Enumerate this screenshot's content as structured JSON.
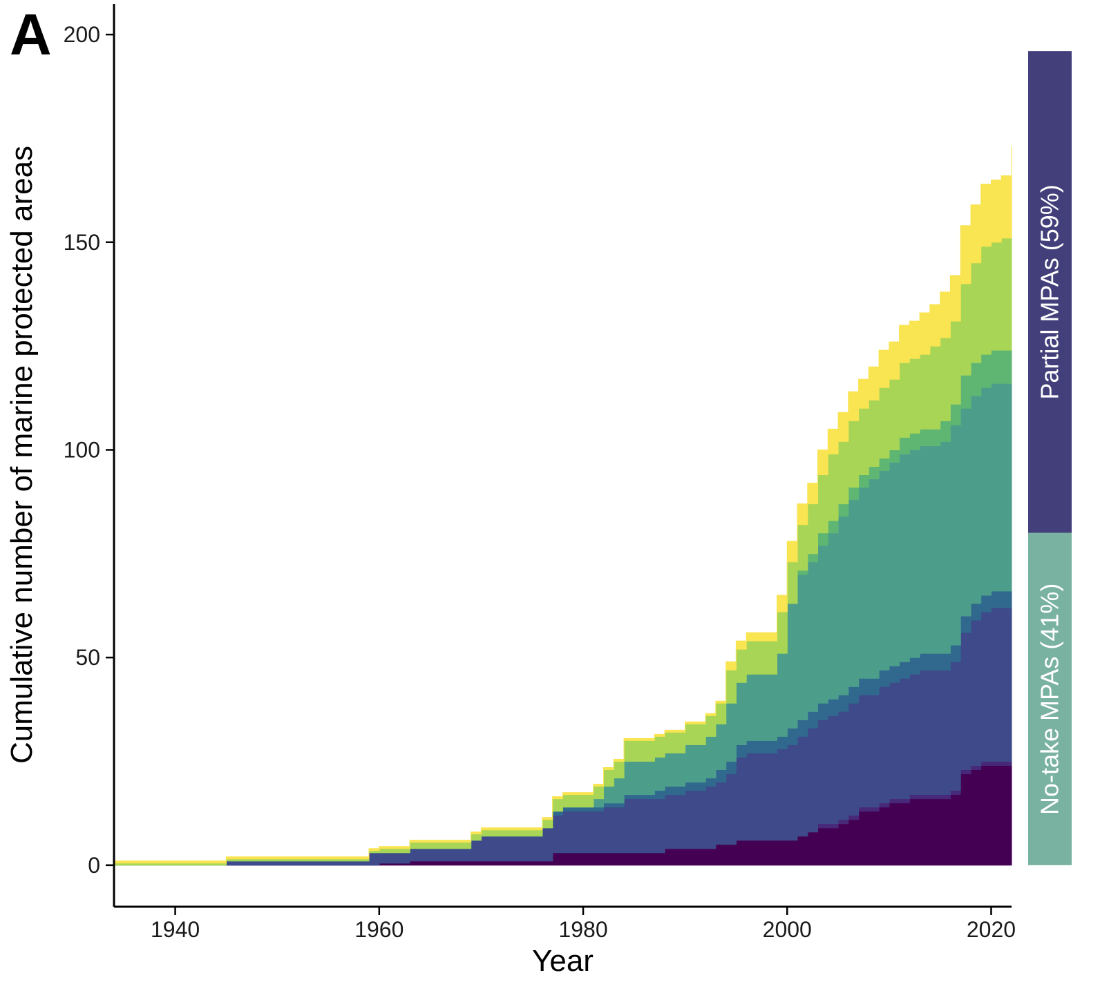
{
  "panel_label": "A",
  "chart_data": {
    "type": "area",
    "stacked": true,
    "step": true,
    "title": "",
    "xlabel": "Year",
    "ylabel": "Cumulative number of marine protected areas",
    "xlim": [
      1934,
      2022
    ],
    "ylim": [
      -10,
      205
    ],
    "x_ticks": [
      1940,
      1960,
      1980,
      2000,
      2020
    ],
    "y_ticks": [
      0,
      50,
      100,
      150,
      200
    ],
    "grid": false,
    "legend": "none",
    "x": [
      1934,
      1943,
      1945,
      1959,
      1960,
      1963,
      1969,
      1970,
      1976,
      1977,
      1978,
      1981,
      1982,
      1983,
      1984,
      1987,
      1988,
      1990,
      1992,
      1993,
      1994,
      1995,
      1996,
      1998,
      1999,
      2000,
      2001,
      2002,
      2003,
      2004,
      2005,
      2006,
      2007,
      2008,
      2009,
      2010,
      2011,
      2012,
      2013,
      2014,
      2015,
      2016,
      2017,
      2018,
      2019,
      2020,
      2021,
      2022
    ],
    "series": [
      {
        "color": "#440154",
        "values": [
          0,
          0,
          0,
          0,
          0.5,
          1,
          1,
          1,
          1,
          3,
          3,
          3,
          3,
          3,
          3,
          3,
          4,
          4,
          4,
          5,
          5,
          6,
          6,
          6,
          6,
          6,
          7,
          8,
          9,
          9,
          10,
          11,
          13,
          13,
          14,
          15,
          15,
          16,
          16,
          16,
          16,
          17,
          22,
          23,
          24,
          24,
          24,
          25
        ]
      },
      {
        "color": "#482878",
        "values": [
          0,
          0,
          0,
          0,
          0,
          0,
          0,
          0,
          0,
          0,
          0,
          0,
          0,
          0,
          0,
          0,
          0,
          0,
          0,
          0,
          0,
          0,
          0,
          0,
          0,
          0,
          0,
          0,
          1,
          1,
          1,
          1,
          1,
          1,
          1,
          1,
          1,
          1,
          1,
          1,
          1,
          1,
          1,
          1,
          1,
          1,
          1,
          1
        ]
      },
      {
        "color": "#3e4a89",
        "values": [
          0,
          0,
          1,
          3,
          2.5,
          3,
          5,
          6,
          8,
          9,
          10,
          10,
          11,
          11,
          13,
          13,
          13,
          14,
          15,
          15,
          17,
          20,
          21,
          21,
          22,
          23,
          24,
          25,
          25,
          26,
          26,
          27,
          27,
          27,
          28,
          28,
          29,
          29,
          30,
          30,
          30,
          31,
          33,
          35,
          36,
          37,
          37,
          38
        ]
      },
      {
        "color": "#31688e",
        "values": [
          0,
          0,
          0,
          0,
          0,
          0,
          0,
          0,
          0,
          1,
          1,
          1,
          1,
          1,
          1,
          2,
          2,
          2,
          2,
          3,
          3,
          3,
          3,
          3,
          3,
          4,
          4,
          4,
          4,
          4,
          4,
          4,
          4,
          4,
          4,
          4,
          4,
          4,
          4,
          4,
          4,
          4,
          4,
          4,
          4,
          4,
          4,
          4
        ]
      },
      {
        "color": "#26828e",
        "values": [
          0,
          0,
          0,
          0,
          0,
          0,
          0,
          0,
          0,
          0,
          0,
          0,
          0,
          0,
          0,
          0,
          0,
          0,
          0,
          0,
          0,
          0,
          0,
          0,
          0,
          0,
          0,
          0,
          0,
          0,
          0,
          0,
          0,
          0,
          0,
          0,
          0,
          0,
          0,
          0,
          0,
          0,
          0,
          0,
          0,
          0,
          0,
          1
        ]
      },
      {
        "color": "#4c9e8b",
        "values": [
          0,
          0,
          0,
          0,
          0,
          0,
          0,
          0,
          0,
          0,
          0,
          2,
          4,
          6,
          8,
          8,
          8,
          9,
          10,
          11,
          14,
          15,
          16,
          16,
          20,
          30,
          35,
          36,
          38,
          40,
          43,
          45,
          46,
          48,
          48,
          49,
          50,
          50,
          50,
          50,
          51,
          53,
          50,
          50,
          50,
          50,
          50,
          51
        ]
      },
      {
        "color": "#5fb672",
        "values": [
          0,
          0,
          0,
          0,
          0,
          0,
          0,
          0,
          0,
          0,
          0,
          0,
          0,
          0,
          0,
          0,
          0,
          0,
          0,
          0,
          0,
          0,
          0,
          0,
          0,
          0,
          1,
          2,
          3,
          3,
          3,
          3,
          3,
          3,
          3,
          3,
          4,
          4,
          4,
          4,
          5,
          5,
          8,
          8,
          8,
          8,
          8,
          10
        ]
      },
      {
        "color": "#a8d556",
        "values": [
          0.5,
          0.5,
          0.5,
          0.5,
          1,
          1.5,
          1.5,
          1.5,
          2,
          3,
          3,
          3,
          4,
          4,
          5,
          5,
          5,
          5,
          5,
          5,
          8,
          8,
          8,
          8,
          10,
          10,
          11,
          12,
          14,
          16,
          15,
          16,
          16,
          16,
          17,
          17,
          18,
          18,
          18,
          20,
          20,
          20,
          22,
          24,
          26,
          26,
          27,
          28
        ]
      },
      {
        "color": "#f9e451",
        "values": [
          0.5,
          0.5,
          0.5,
          0.5,
          0.5,
          0.5,
          0.5,
          0.5,
          0.5,
          0.5,
          0.5,
          0.5,
          0.5,
          0.5,
          0.5,
          0.5,
          0.5,
          0.5,
          0.5,
          0.5,
          2,
          2,
          2,
          2,
          4,
          5,
          5,
          5,
          6,
          6,
          7,
          7,
          7,
          8,
          9,
          9,
          9,
          9,
          10,
          10,
          11,
          11,
          14,
          14,
          15,
          15,
          15,
          15
        ]
      }
    ],
    "side_bars": [
      {
        "label": "Partial MPAs (59%)",
        "color": "#423f7a",
        "from": 80,
        "to": 196
      },
      {
        "label": "No-take MPAs (41%)",
        "color": "#7ab2a1",
        "from": 0,
        "to": 80
      }
    ]
  }
}
